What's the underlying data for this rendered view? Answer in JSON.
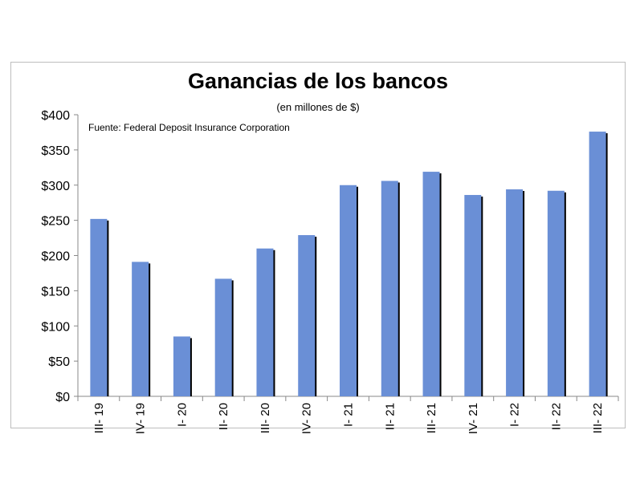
{
  "chart_data": {
    "type": "bar",
    "title": "Ganancias de los bancos",
    "subtitle": "(en millones de $)",
    "source": "Fuente: Federal Deposit Insurance Corporation",
    "categories": [
      "III- 19",
      "IV- 19",
      "I- 20",
      "II- 20",
      "III- 20",
      "IV- 20",
      "I- 21",
      "II- 21",
      "III- 21",
      "IV- 21",
      "I- 22",
      "II- 22",
      "III- 22"
    ],
    "values": [
      252,
      191,
      85,
      167,
      210,
      229,
      300,
      306,
      319,
      286,
      294,
      292,
      376
    ],
    "y_tick_labels": [
      "$0",
      "$50",
      "$100",
      "$150",
      "$200",
      "$250",
      "$300",
      "$350",
      "$400"
    ],
    "ylim": [
      0,
      400
    ],
    "y_step": 50,
    "grid": false,
    "legend": "none",
    "colors": {
      "bar": "#6a8fd6",
      "shadow": "#000000",
      "axis": "#888888"
    }
  }
}
